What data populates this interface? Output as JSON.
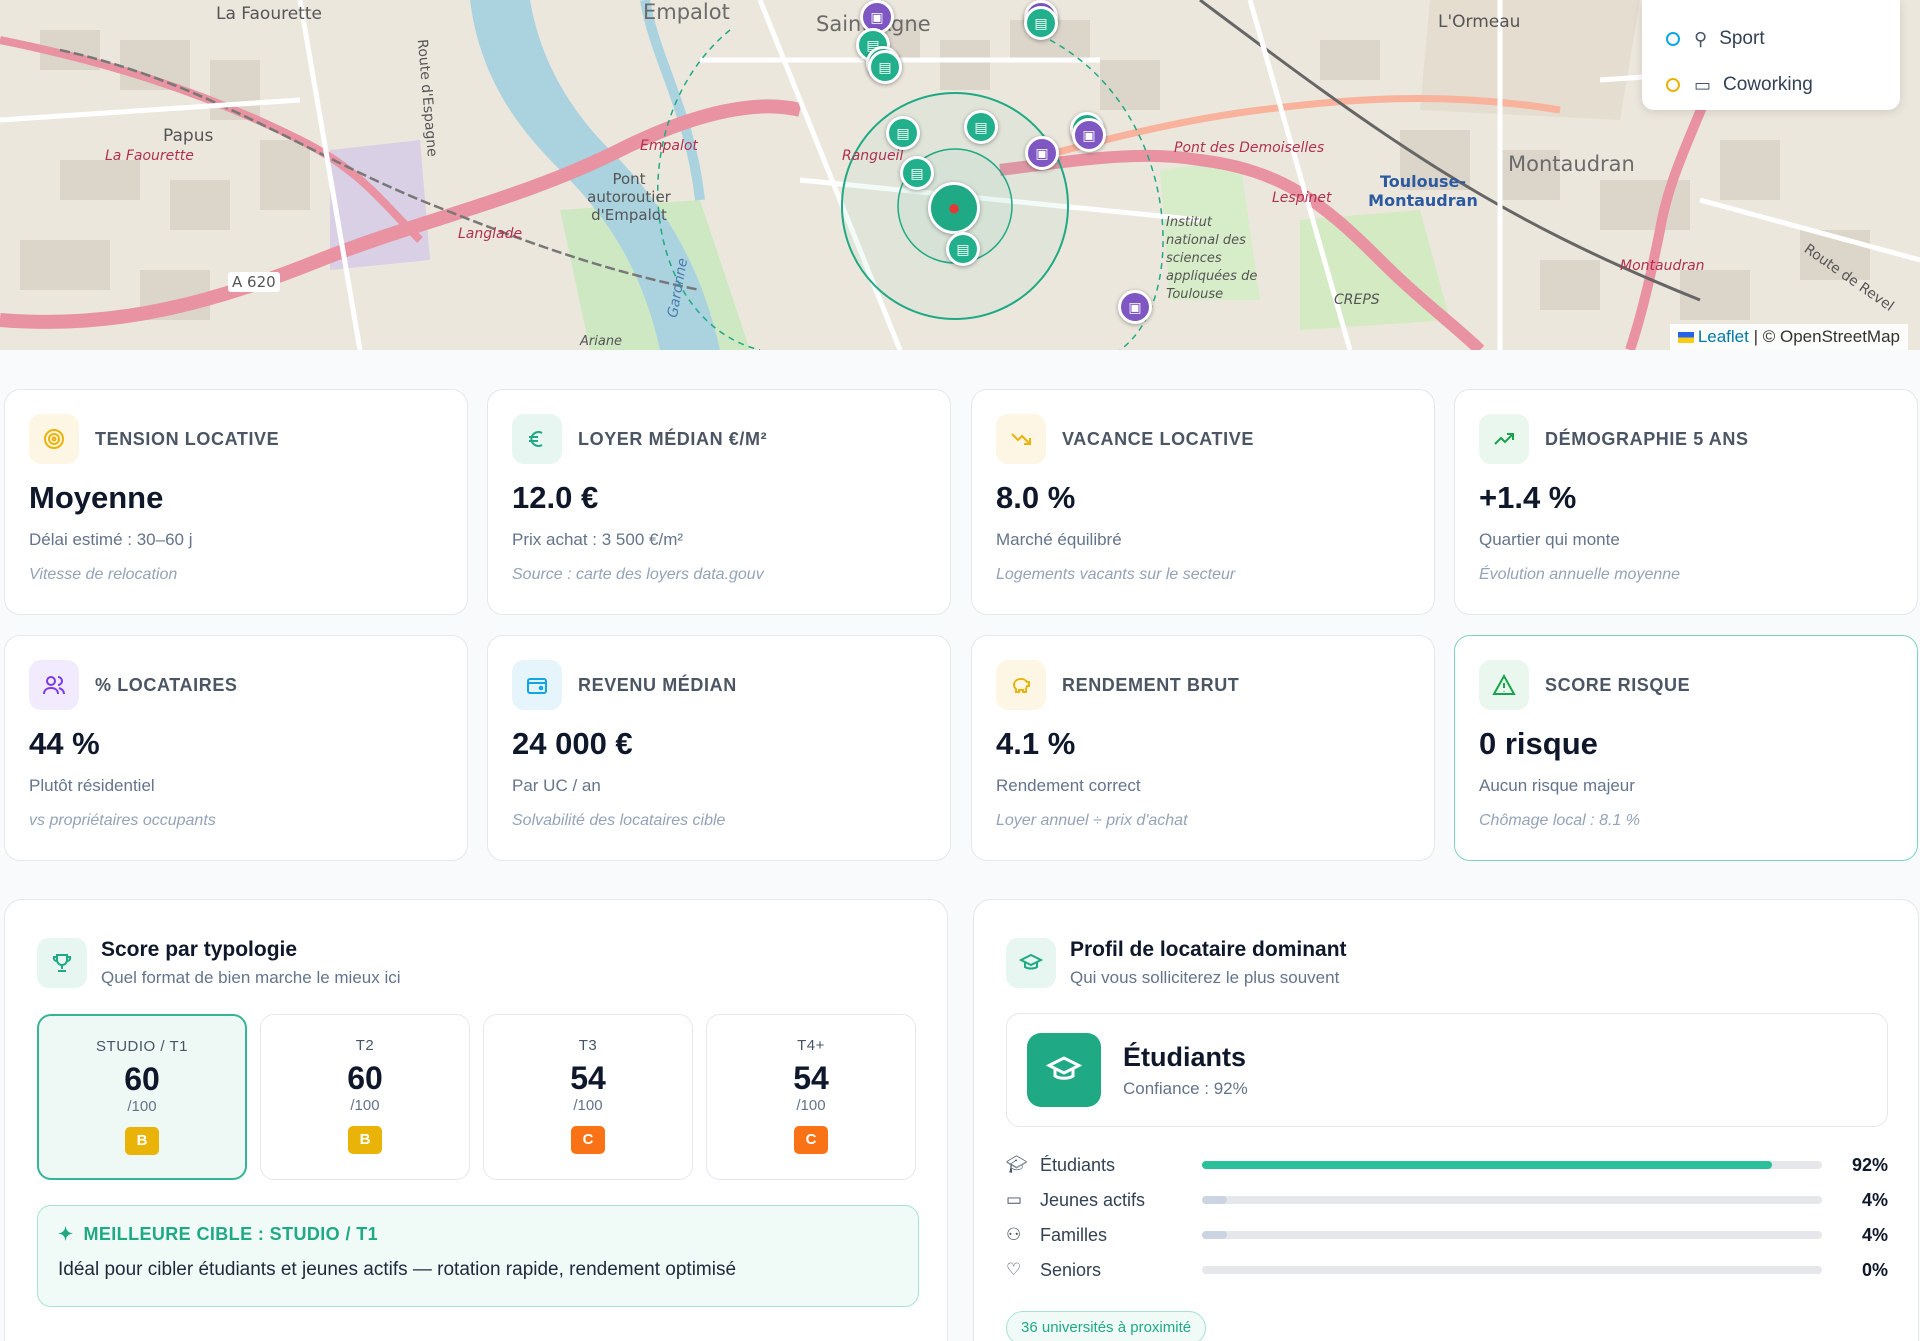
{
  "map": {
    "labels": [
      "La Faourette",
      "Empalot",
      "Saint-Agne",
      "L'Ormeau",
      "Papus",
      "La Faourette",
      "Pont autoroutier d'Empalot",
      "Rangueil",
      "Montaudran",
      "Toulouse-Montaudran",
      "Pont des Demoiselles",
      "Institut national des sciences appliquées de Toulouse",
      "Lespinet",
      "CREPS",
      "Langlade",
      "A 620",
      "Ariane",
      "Garonne",
      "Route d'Espagne",
      "Route de Revel",
      "Montaudran",
      "Empalot"
    ],
    "legend": [
      {
        "label": "Sport",
        "color": "#0ea5e9",
        "icon": "sport-icon"
      },
      {
        "label": "Coworking",
        "color": "#eab308",
        "icon": "briefcase-icon"
      }
    ],
    "attribution_leaflet": "Leaflet",
    "attribution_osm": "| © OpenStreetMap"
  },
  "kpis": [
    {
      "title": "TENSION LOCATIVE",
      "value": "Moyenne",
      "sub": "Délai estimé : 30–60 j",
      "note": "Vitesse de relocation",
      "icon": "target-icon",
      "color": "#eab308",
      "bg": "#fef6e4"
    },
    {
      "title": "LOYER MÉDIAN €/M²",
      "value": "12.0 €",
      "sub": "Prix achat : 3 500 €/m²",
      "note": "Source : carte des loyers data.gouv",
      "icon": "euro-icon",
      "color": "#1fa985",
      "bg": "#e7f6f1"
    },
    {
      "title": "VACANCE LOCATIVE",
      "value": "8.0 %",
      "sub": "Marché équilibré",
      "note": "Logements vacants sur le secteur",
      "icon": "trending-down-icon",
      "color": "#eab308",
      "bg": "#fef6e4"
    },
    {
      "title": "DÉMOGRAPHIE 5 ANS",
      "value": "+1.4 %",
      "sub": "Quartier qui monte",
      "note": "Évolution annuelle moyenne",
      "icon": "trending-up-icon",
      "color": "#16a34a",
      "bg": "#e9f7ee"
    },
    {
      "title": "% LOCATAIRES",
      "value": "44 %",
      "sub": "Plutôt résidentiel",
      "note": "vs propriétaires occupants",
      "icon": "users-icon",
      "color": "#7c3aed",
      "bg": "#f1ebfd"
    },
    {
      "title": "REVENU MÉDIAN",
      "value": "24 000 €",
      "sub": "Par UC / an",
      "note": "Solvabilité des locataires cible",
      "icon": "wallet-icon",
      "color": "#0ea5e9",
      "bg": "#e6f4fb"
    },
    {
      "title": "RENDEMENT BRUT",
      "value": "4.1 %",
      "sub": "Rendement correct",
      "note": "Loyer annuel ÷ prix d'achat",
      "icon": "piggy-bank-icon",
      "color": "#eab308",
      "bg": "#fef6e4"
    },
    {
      "title": "SCORE RISQUE",
      "value": "0 risque",
      "sub": "Aucun risque majeur",
      "note": "Chômage local : 8.1 %",
      "icon": "warning-icon",
      "color": "#16a34a",
      "bg": "#e9f7ee"
    }
  ],
  "typology": {
    "title": "Score par typologie",
    "subtitle": "Quel format de bien marche le mieux ici",
    "items": [
      {
        "label": "STUDIO / T1",
        "score": "60",
        "max": "/100",
        "grade": "B",
        "selected": true
      },
      {
        "label": "T2",
        "score": "60",
        "max": "/100",
        "grade": "B",
        "selected": false
      },
      {
        "label": "T3",
        "score": "54",
        "max": "/100",
        "grade": "C",
        "selected": false
      },
      {
        "label": "T4+",
        "score": "54",
        "max": "/100",
        "grade": "C",
        "selected": false
      }
    ],
    "best_title": "MEILLEURE CIBLE : STUDIO / T1",
    "best_text": "Idéal pour cibler étudiants et jeunes actifs — rotation rapide, rendement optimisé"
  },
  "profile": {
    "title": "Profil de locataire dominant",
    "subtitle": "Qui vous solliciterez le plus souvent",
    "dominant": "Étudiants",
    "confidence": "Confiance : 92%",
    "rows": [
      {
        "label": "Étudiants",
        "pct": "92%",
        "value": 92,
        "icon": "graduation-cap-icon",
        "color": "#2bbf9a"
      },
      {
        "label": "Jeunes actifs",
        "pct": "4%",
        "value": 4,
        "icon": "briefcase-icon",
        "color": "#cbd5e1"
      },
      {
        "label": "Familles",
        "pct": "4%",
        "value": 4,
        "icon": "users-icon",
        "color": "#cbd5e1"
      },
      {
        "label": "Seniors",
        "pct": "0%",
        "value": 0,
        "icon": "heart-icon",
        "color": "#cbd5e1"
      }
    ],
    "universities": "36 universités à proximité"
  }
}
